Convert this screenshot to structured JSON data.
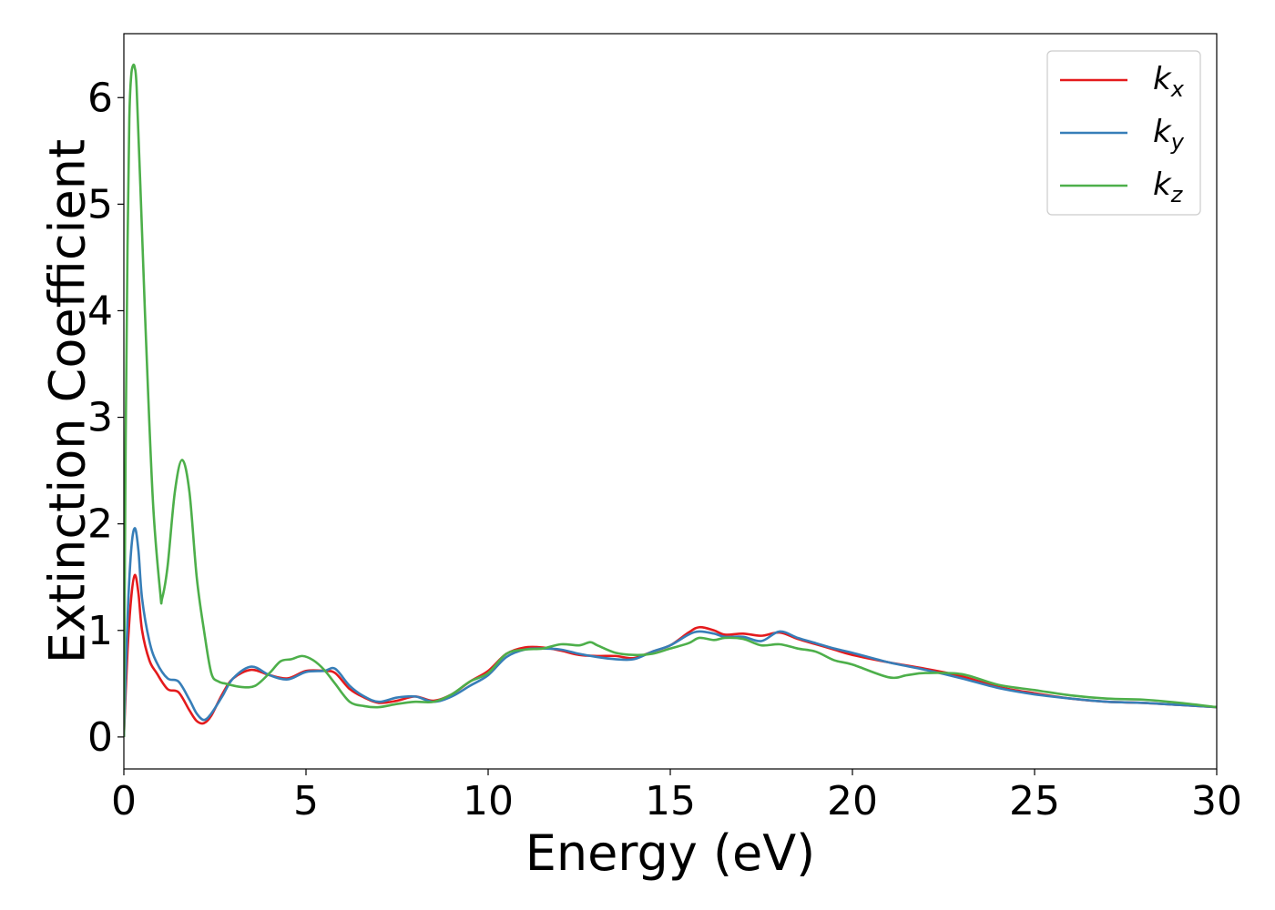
{
  "chart_data": {
    "type": "line",
    "title": "",
    "xlabel": "Energy (eV)",
    "ylabel": "Extinction Coefficient",
    "xlim": [
      0,
      30
    ],
    "ylim": [
      -0.3,
      6.6
    ],
    "xticks": [
      0,
      5,
      10,
      15,
      20,
      25,
      30
    ],
    "yticks": [
      0,
      1,
      2,
      3,
      4,
      5,
      6
    ],
    "grid": false,
    "legend_position": "top-right",
    "series": [
      {
        "name": "kx",
        "label_main": "k",
        "label_sub": "x",
        "color": "#e41a1c",
        "x": [
          0,
          0.1,
          0.2,
          0.3,
          0.4,
          0.5,
          0.7,
          0.9,
          1.2,
          1.5,
          1.8,
          2.0,
          2.2,
          2.4,
          2.7,
          3.0,
          3.5,
          4.0,
          4.5,
          5.0,
          5.5,
          5.8,
          6.2,
          6.6,
          7.0,
          7.5,
          8.0,
          8.5,
          9.0,
          9.5,
          10.0,
          10.5,
          11.0,
          11.5,
          12.0,
          12.5,
          13.0,
          13.5,
          14.0,
          14.5,
          15.0,
          15.5,
          15.8,
          16.2,
          16.5,
          17.0,
          17.5,
          18.0,
          18.5,
          19.0,
          19.5,
          20.0,
          21.0,
          22.0,
          23.0,
          24.0,
          25.0,
          26.0,
          27.0,
          28.0,
          29.0,
          30.0
        ],
        "y": [
          0,
          0.8,
          1.3,
          1.52,
          1.35,
          1.0,
          0.72,
          0.6,
          0.45,
          0.42,
          0.25,
          0.15,
          0.13,
          0.2,
          0.4,
          0.55,
          0.63,
          0.58,
          0.55,
          0.62,
          0.62,
          0.6,
          0.45,
          0.37,
          0.32,
          0.34,
          0.38,
          0.34,
          0.4,
          0.52,
          0.62,
          0.78,
          0.84,
          0.84,
          0.81,
          0.77,
          0.76,
          0.76,
          0.74,
          0.8,
          0.86,
          0.98,
          1.03,
          1.0,
          0.96,
          0.97,
          0.95,
          0.98,
          0.92,
          0.87,
          0.82,
          0.77,
          0.7,
          0.64,
          0.57,
          0.47,
          0.41,
          0.36,
          0.33,
          0.32,
          0.3,
          0.28
        ]
      },
      {
        "name": "ky",
        "label_main": "k",
        "label_sub": "y",
        "color": "#377eb8",
        "x": [
          0,
          0.1,
          0.2,
          0.3,
          0.4,
          0.5,
          0.7,
          0.9,
          1.2,
          1.5,
          1.8,
          2.0,
          2.2,
          2.4,
          2.7,
          3.0,
          3.5,
          4.0,
          4.5,
          5.0,
          5.5,
          5.8,
          6.2,
          6.6,
          7.0,
          7.5,
          8.0,
          8.5,
          9.0,
          9.5,
          10.0,
          10.5,
          11.0,
          11.5,
          12.0,
          12.5,
          13.0,
          13.5,
          14.0,
          14.5,
          15.0,
          15.5,
          15.8,
          16.2,
          16.5,
          17.0,
          17.5,
          18.0,
          18.5,
          19.0,
          19.5,
          20.0,
          21.0,
          22.0,
          23.0,
          24.0,
          25.0,
          26.0,
          27.0,
          28.0,
          29.0,
          30.0
        ],
        "y": [
          0,
          1.1,
          1.75,
          1.96,
          1.75,
          1.3,
          0.9,
          0.7,
          0.55,
          0.52,
          0.35,
          0.22,
          0.16,
          0.22,
          0.38,
          0.55,
          0.66,
          0.58,
          0.54,
          0.61,
          0.62,
          0.64,
          0.48,
          0.38,
          0.33,
          0.37,
          0.38,
          0.33,
          0.38,
          0.48,
          0.58,
          0.75,
          0.82,
          0.83,
          0.82,
          0.78,
          0.75,
          0.73,
          0.73,
          0.8,
          0.86,
          0.96,
          0.99,
          0.97,
          0.94,
          0.94,
          0.9,
          0.99,
          0.93,
          0.88,
          0.83,
          0.79,
          0.7,
          0.63,
          0.55,
          0.46,
          0.4,
          0.36,
          0.33,
          0.32,
          0.3,
          0.28
        ]
      },
      {
        "name": "kz",
        "label_main": "k",
        "label_sub": "z",
        "color": "#4daf4a",
        "x": [
          0,
          0.05,
          0.1,
          0.15,
          0.2,
          0.25,
          0.3,
          0.35,
          0.45,
          0.6,
          0.8,
          1.0,
          1.05,
          1.2,
          1.4,
          1.6,
          1.8,
          2.0,
          2.2,
          2.4,
          2.6,
          2.8,
          3.2,
          3.6,
          4.0,
          4.3,
          4.6,
          4.9,
          5.2,
          5.5,
          5.8,
          6.2,
          6.6,
          7.0,
          7.5,
          8.0,
          8.5,
          9.0,
          9.5,
          10.0,
          10.5,
          11.0,
          11.5,
          12.0,
          12.5,
          12.8,
          13.0,
          13.5,
          14.0,
          14.5,
          15.0,
          15.5,
          15.8,
          16.2,
          16.5,
          17.0,
          17.5,
          18.0,
          18.5,
          19.0,
          19.5,
          20.0,
          21.0,
          21.5,
          22.0,
          23.0,
          24.0,
          25.0,
          26.0,
          27.0,
          28.0,
          29.0,
          30.0
        ],
        "y": [
          0,
          2.8,
          4.6,
          5.8,
          6.2,
          6.3,
          6.28,
          6.1,
          5.2,
          3.8,
          2.2,
          1.35,
          1.3,
          1.6,
          2.3,
          2.6,
          2.3,
          1.5,
          1.0,
          0.6,
          0.52,
          0.5,
          0.47,
          0.48,
          0.6,
          0.71,
          0.73,
          0.76,
          0.72,
          0.63,
          0.5,
          0.33,
          0.29,
          0.28,
          0.31,
          0.33,
          0.33,
          0.4,
          0.52,
          0.6,
          0.78,
          0.82,
          0.83,
          0.87,
          0.86,
          0.89,
          0.86,
          0.79,
          0.77,
          0.78,
          0.83,
          0.88,
          0.93,
          0.91,
          0.93,
          0.92,
          0.86,
          0.87,
          0.83,
          0.8,
          0.72,
          0.68,
          0.56,
          0.58,
          0.6,
          0.59,
          0.49,
          0.44,
          0.39,
          0.36,
          0.35,
          0.32,
          0.28
        ]
      }
    ]
  }
}
